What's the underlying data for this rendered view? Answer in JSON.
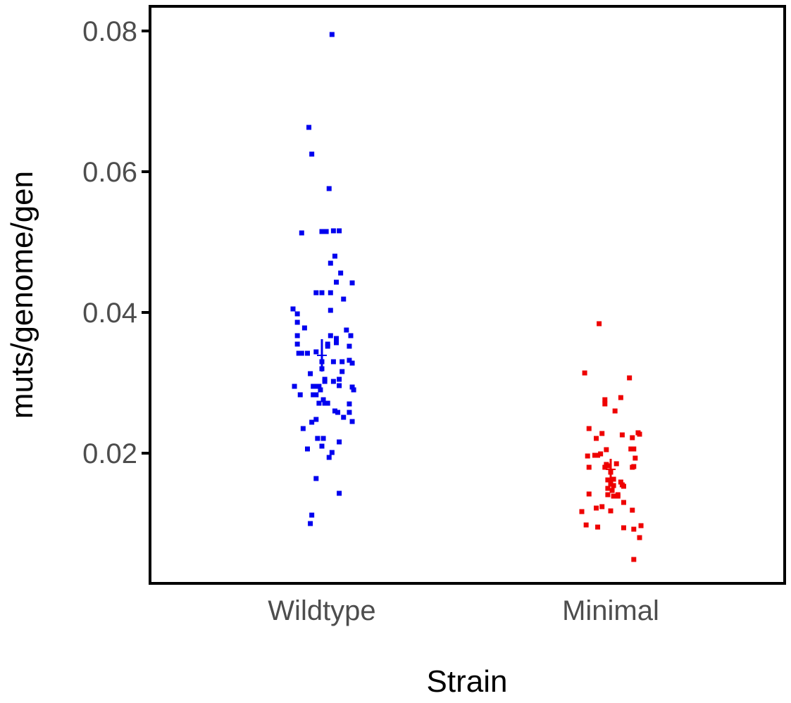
{
  "chart_data": {
    "type": "scatter",
    "title": "",
    "xlabel": "Strain",
    "ylabel": "muts/genome/gen",
    "categories": [
      "Wildtype",
      "Minimal"
    ],
    "ylim": [
      0.0015,
      0.0835
    ],
    "yticks": [
      {
        "value": 0.02,
        "label": "0.02"
      },
      {
        "value": 0.04,
        "label": "0.04"
      },
      {
        "value": 0.06,
        "label": "0.06"
      },
      {
        "value": 0.08,
        "label": "0.08"
      }
    ],
    "grid": false,
    "legend": "none",
    "series": [
      {
        "category": "Wildtype",
        "color": "#0000ee",
        "mean": 0.0339,
        "ci": [
          0.0316,
          0.0362
        ],
        "points": [
          {
            "jitter": -0.2,
            "y": 0.0405
          },
          {
            "jitter": -0.17,
            "y": 0.0398
          },
          {
            "jitter": -0.17,
            "y": 0.0386
          },
          {
            "jitter": -0.17,
            "y": 0.0367
          },
          {
            "jitter": -0.17,
            "y": 0.0355
          },
          {
            "jitter": -0.16,
            "y": 0.0342
          },
          {
            "jitter": -0.15,
            "y": 0.0342
          },
          {
            "jitter": -0.14,
            "y": 0.0342
          },
          {
            "jitter": -0.19,
            "y": 0.0295
          },
          {
            "jitter": -0.15,
            "y": 0.0283
          },
          {
            "jitter": -0.13,
            "y": 0.0235
          },
          {
            "jitter": -0.12,
            "y": 0.0378
          },
          {
            "jitter": -0.1,
            "y": 0.0342
          },
          {
            "jitter": -0.1,
            "y": 0.0206
          },
          {
            "jitter": -0.14,
            "y": 0.0513
          },
          {
            "jitter": -0.09,
            "y": 0.0663
          },
          {
            "jitter": -0.07,
            "y": 0.0625
          },
          {
            "jitter": -0.08,
            "y": 0.0313
          },
          {
            "jitter": -0.06,
            "y": 0.0295
          },
          {
            "jitter": -0.06,
            "y": 0.0283
          },
          {
            "jitter": -0.07,
            "y": 0.0244
          },
          {
            "jitter": -0.07,
            "y": 0.0112
          },
          {
            "jitter": -0.08,
            "y": 0.01
          },
          {
            "jitter": -0.04,
            "y": 0.0428
          },
          {
            "jitter": -0.04,
            "y": 0.0344
          },
          {
            "jitter": -0.05,
            "y": 0.0295
          },
          {
            "jitter": -0.04,
            "y": 0.0283
          },
          {
            "jitter": -0.04,
            "y": 0.0248
          },
          {
            "jitter": -0.03,
            "y": 0.0221
          },
          {
            "jitter": -0.04,
            "y": 0.0164
          },
          {
            "jitter": -0.02,
            "y": 0.0295
          },
          {
            "jitter": -0.01,
            "y": 0.029
          },
          {
            "jitter": -0.02,
            "y": 0.0271
          },
          {
            "jitter": 0.0,
            "y": 0.033
          },
          {
            "jitter": 0.01,
            "y": 0.0276
          },
          {
            "jitter": 0.0,
            "y": 0.0515
          },
          {
            "jitter": 0.0,
            "y": 0.0428
          },
          {
            "jitter": 0.0,
            "y": 0.032
          },
          {
            "jitter": 0.0,
            "y": 0.021
          },
          {
            "jitter": 0.01,
            "y": 0.0221
          },
          {
            "jitter": 0.02,
            "y": 0.0305
          },
          {
            "jitter": 0.02,
            "y": 0.0302
          },
          {
            "jitter": 0.02,
            "y": 0.0271
          },
          {
            "jitter": 0.03,
            "y": 0.0515
          },
          {
            "jitter": 0.04,
            "y": 0.0271
          },
          {
            "jitter": 0.04,
            "y": 0.0355
          },
          {
            "jitter": 0.04,
            "y": 0.0352
          },
          {
            "jitter": 0.05,
            "y": 0.0576
          },
          {
            "jitter": 0.05,
            "y": 0.0194
          },
          {
            "jitter": 0.06,
            "y": 0.047
          },
          {
            "jitter": 0.06,
            "y": 0.0428
          },
          {
            "jitter": 0.06,
            "y": 0.0403
          },
          {
            "jitter": 0.06,
            "y": 0.0367
          },
          {
            "jitter": 0.07,
            "y": 0.0201
          },
          {
            "jitter": 0.08,
            "y": 0.033
          },
          {
            "jitter": 0.08,
            "y": 0.0302
          },
          {
            "jitter": 0.08,
            "y": 0.0516
          },
          {
            "jitter": 0.09,
            "y": 0.048
          },
          {
            "jitter": 0.09,
            "y": 0.026
          },
          {
            "jitter": 0.1,
            "y": 0.0443
          },
          {
            "jitter": 0.1,
            "y": 0.0363
          },
          {
            "jitter": 0.1,
            "y": 0.0357
          },
          {
            "jitter": 0.11,
            "y": 0.0258
          },
          {
            "jitter": 0.12,
            "y": 0.0516
          },
          {
            "jitter": 0.12,
            "y": 0.0305
          },
          {
            "jitter": 0.12,
            "y": 0.0296
          },
          {
            "jitter": 0.12,
            "y": 0.0216
          },
          {
            "jitter": 0.12,
            "y": 0.0143
          },
          {
            "jitter": 0.13,
            "y": 0.0456
          },
          {
            "jitter": 0.14,
            "y": 0.033
          },
          {
            "jitter": 0.14,
            "y": 0.0316
          },
          {
            "jitter": 0.15,
            "y": 0.0419
          },
          {
            "jitter": 0.15,
            "y": 0.0251
          },
          {
            "jitter": 0.17,
            "y": 0.0375
          },
          {
            "jitter": 0.19,
            "y": 0.0352
          },
          {
            "jitter": 0.19,
            "y": 0.0332
          },
          {
            "jitter": 0.2,
            "y": 0.0367
          },
          {
            "jitter": 0.19,
            "y": 0.027
          },
          {
            "jitter": 0.19,
            "y": 0.0258
          },
          {
            "jitter": 0.21,
            "y": 0.0442
          },
          {
            "jitter": 0.21,
            "y": 0.0328
          },
          {
            "jitter": 0.21,
            "y": 0.0294
          },
          {
            "jitter": 0.22,
            "y": 0.029
          },
          {
            "jitter": 0.21,
            "y": 0.0245
          },
          {
            "jitter": 0.07,
            "y": 0.0795
          }
        ]
      },
      {
        "category": "Minimal",
        "color": "#ee0000",
        "mean": 0.0177,
        "ci": [
          0.0159,
          0.0192
        ],
        "points": [
          {
            "jitter": -0.2,
            "y": 0.0117
          },
          {
            "jitter": -0.18,
            "y": 0.0314
          },
          {
            "jitter": -0.17,
            "y": 0.0098
          },
          {
            "jitter": -0.16,
            "y": 0.0196
          },
          {
            "jitter": -0.15,
            "y": 0.0235
          },
          {
            "jitter": -0.15,
            "y": 0.018
          },
          {
            "jitter": -0.15,
            "y": 0.0142
          },
          {
            "jitter": -0.11,
            "y": 0.0197
          },
          {
            "jitter": -0.1,
            "y": 0.0221
          },
          {
            "jitter": -0.1,
            "y": 0.0122
          },
          {
            "jitter": -0.09,
            "y": 0.0197
          },
          {
            "jitter": -0.09,
            "y": 0.0095
          },
          {
            "jitter": -0.08,
            "y": 0.0384
          },
          {
            "jitter": -0.07,
            "y": 0.0199
          },
          {
            "jitter": -0.06,
            "y": 0.0228
          },
          {
            "jitter": -0.06,
            "y": 0.0124
          },
          {
            "jitter": -0.04,
            "y": 0.0276
          },
          {
            "jitter": -0.04,
            "y": 0.027
          },
          {
            "jitter": -0.04,
            "y": 0.018
          },
          {
            "jitter": -0.03,
            "y": 0.0205
          },
          {
            "jitter": -0.03,
            "y": 0.0184
          },
          {
            "jitter": -0.02,
            "y": 0.0162
          },
          {
            "jitter": -0.02,
            "y": 0.015
          },
          {
            "jitter": -0.02,
            "y": 0.0141
          },
          {
            "jitter": -0.01,
            "y": 0.0182
          },
          {
            "jitter": 0.0,
            "y": 0.0173
          },
          {
            "jitter": 0.0,
            "y": 0.0156
          },
          {
            "jitter": 0.0,
            "y": 0.0118
          },
          {
            "jitter": 0.01,
            "y": 0.0147
          },
          {
            "jitter": 0.02,
            "y": 0.0154
          },
          {
            "jitter": 0.02,
            "y": 0.0163
          },
          {
            "jitter": 0.02,
            "y": 0.0139
          },
          {
            "jitter": 0.03,
            "y": 0.026
          },
          {
            "jitter": 0.04,
            "y": 0.0185
          },
          {
            "jitter": 0.05,
            "y": 0.0141
          },
          {
            "jitter": 0.05,
            "y": 0.0139
          },
          {
            "jitter": 0.07,
            "y": 0.0279
          },
          {
            "jitter": 0.07,
            "y": 0.0159
          },
          {
            "jitter": 0.08,
            "y": 0.0155
          },
          {
            "jitter": 0.08,
            "y": 0.0226
          },
          {
            "jitter": 0.09,
            "y": 0.0153
          },
          {
            "jitter": 0.09,
            "y": 0.013
          },
          {
            "jitter": 0.09,
            "y": 0.0094
          },
          {
            "jitter": 0.13,
            "y": 0.0307
          },
          {
            "jitter": 0.14,
            "y": 0.0206
          },
          {
            "jitter": 0.15,
            "y": 0.0222
          },
          {
            "jitter": 0.15,
            "y": 0.018
          },
          {
            "jitter": 0.15,
            "y": 0.0119
          },
          {
            "jitter": 0.16,
            "y": 0.0092
          },
          {
            "jitter": 0.16,
            "y": 0.0049
          },
          {
            "jitter": 0.16,
            "y": 0.0181
          },
          {
            "jitter": 0.16,
            "y": 0.0206
          },
          {
            "jitter": 0.17,
            "y": 0.0193
          },
          {
            "jitter": 0.19,
            "y": 0.0229
          },
          {
            "jitter": 0.2,
            "y": 0.0227
          },
          {
            "jitter": 0.2,
            "y": 0.008
          },
          {
            "jitter": 0.21,
            "y": 0.0097
          }
        ]
      }
    ]
  }
}
